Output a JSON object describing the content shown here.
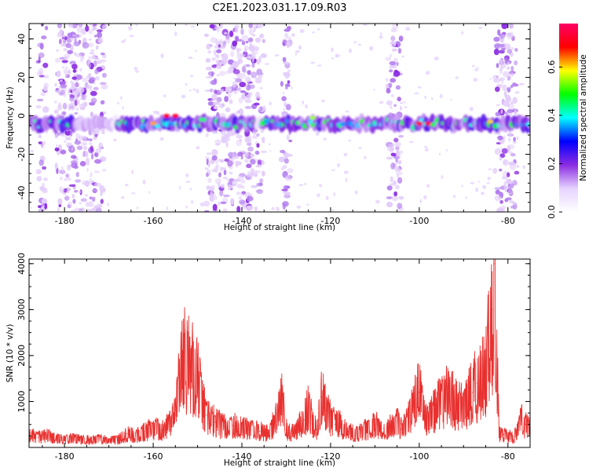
{
  "figure": {
    "title": "C2E1.2023.031.17.09.R03"
  },
  "chart_data": [
    {
      "type": "heatmap",
      "xlabel": "Height of straight line (km)",
      "ylabel": "Frequency (Hz)",
      "xlim": [
        -188,
        -75
      ],
      "ylim": [
        -50,
        48
      ],
      "xticks": [
        -180,
        -160,
        -140,
        -120,
        -100,
        -80
      ],
      "yticks": [
        -40,
        -20,
        0,
        20,
        40
      ],
      "band_center_hz": -4,
      "colorbar": {
        "label": "Normalized spectral amplitude",
        "range": [
          0,
          0.78
        ],
        "ticks": [
          0.0,
          0.2,
          0.4,
          0.6
        ],
        "colors": [
          "#ffffff",
          "#e6d2ff",
          "#8a2be2",
          "#0000ff",
          "#00ffff",
          "#00ff00",
          "#ffff00",
          "#ff0000",
          "#ff0066"
        ]
      },
      "noise_columns_km": [
        [
          -186,
          -184
        ],
        [
          -182,
          -171
        ],
        [
          -148,
          -135
        ],
        [
          -131,
          -129
        ],
        [
          -107,
          -104
        ],
        [
          -83,
          -78
        ]
      ],
      "band_peaks": [
        {
          "x": -160,
          "y": -4,
          "v": 0.62
        },
        {
          "x": -157,
          "y": 0,
          "v": 0.7
        },
        {
          "x": -155,
          "y": 0,
          "v": 0.72
        },
        {
          "x": -149,
          "y": -2,
          "v": 0.45
        },
        {
          "x": -124,
          "y": -1,
          "v": 0.55
        },
        {
          "x": -100,
          "y": -4,
          "v": 0.72
        },
        {
          "x": -98,
          "y": -4,
          "v": 0.75
        },
        {
          "x": -84,
          "y": -3,
          "v": 0.6
        }
      ]
    },
    {
      "type": "line",
      "xlabel": "Height of straight line (km)",
      "ylabel": "SNR (10 * v/v)",
      "xlim": [
        -188,
        -75
      ],
      "ylim": [
        0,
        4100
      ],
      "xticks": [
        -180,
        -160,
        -140,
        -120,
        -100,
        -80
      ],
      "yticks": [
        1000,
        2000,
        3000,
        4000
      ],
      "line_color": "#e8312f",
      "series": [
        {
          "x": [
            -188,
            -186,
            -184,
            -182,
            -180,
            -178,
            -176,
            -174,
            -172,
            -170,
            -168,
            -166,
            -164,
            -162,
            -160,
            -158,
            -156,
            -155,
            -154,
            -153,
            -152,
            -151,
            -150,
            -149,
            -148,
            -146,
            -144,
            -142,
            -140,
            -138,
            -136,
            -134,
            -132,
            -131,
            -130,
            -129,
            -128,
            -126,
            -125,
            -124,
            -123,
            -122,
            -121,
            -120,
            -119,
            -118,
            -117,
            -116,
            -114,
            -112,
            -110,
            -108,
            -106,
            -105,
            -104,
            -103,
            -102,
            -101,
            -100,
            -99,
            -98,
            -96,
            -94,
            -92,
            -90,
            -88,
            -87,
            -86,
            -85,
            -84,
            -83.5,
            -83,
            -82.5,
            -82,
            -81,
            -80,
            -79,
            -78,
            -77,
            -76,
            -75
          ],
          "values": [
            300,
            220,
            260,
            200,
            180,
            190,
            170,
            160,
            180,
            150,
            170,
            300,
            250,
            350,
            420,
            380,
            520,
            700,
            1500,
            1900,
            1850,
            1700,
            1500,
            1100,
            700,
            550,
            450,
            480,
            420,
            380,
            350,
            300,
            700,
            1000,
            400,
            300,
            350,
            600,
            900,
            550,
            400,
            1100,
            800,
            650,
            500,
            600,
            400,
            350,
            300,
            400,
            500,
            420,
            450,
            550,
            400,
            500,
            700,
            1100,
            1200,
            800,
            600,
            900,
            1100,
            1000,
            900,
            1200,
            1400,
            1500,
            1600,
            2600,
            3000,
            4000,
            2000,
            300,
            280,
            250,
            220,
            300,
            600,
            500,
            400
          ]
        }
      ]
    }
  ]
}
